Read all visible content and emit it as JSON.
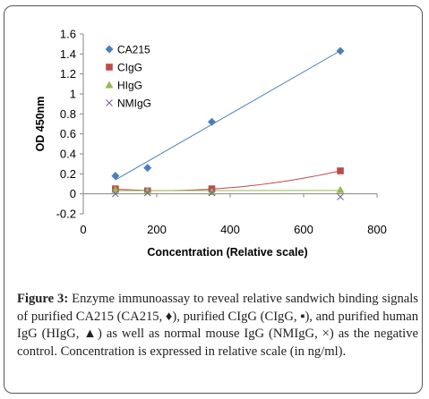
{
  "chart_data": {
    "type": "scatter",
    "title": "",
    "xlabel": "Concentration (Relative scale)",
    "ylabel": "OD 450nm",
    "xlim": [
      0,
      800
    ],
    "ylim": [
      -0.2,
      1.6
    ],
    "xticks": [
      0,
      200,
      400,
      600,
      800
    ],
    "yticks": [
      -0.2,
      0,
      0.2,
      0.4,
      0.6,
      0.8,
      1,
      1.2,
      1.4,
      1.6
    ],
    "grid": false,
    "legend_position": "top-left",
    "series": [
      {
        "name": "CA215",
        "marker": "diamond",
        "color": "#4a7ebb",
        "x": [
          87.5,
          175,
          350,
          700
        ],
        "y": [
          0.18,
          0.26,
          0.72,
          1.43
        ],
        "trendline": "linear"
      },
      {
        "name": "CIgG",
        "marker": "square",
        "color": "#be4b48",
        "x": [
          87.5,
          175,
          350,
          700
        ],
        "y": [
          0.05,
          0.03,
          0.05,
          0.23
        ],
        "trendline": "curve"
      },
      {
        "name": "HIgG",
        "marker": "triangle",
        "color": "#98b954",
        "x": [
          87.5,
          175,
          350,
          700
        ],
        "y": [
          0.04,
          0.03,
          0.02,
          0.04
        ],
        "trendline": "linear"
      },
      {
        "name": "NMIgG",
        "marker": "x",
        "color": "#7d60a0",
        "x": [
          87.5,
          175,
          350,
          700
        ],
        "y": [
          0.0,
          0.01,
          0.01,
          -0.03
        ],
        "trendline": "none"
      }
    ]
  },
  "caption": {
    "label": "Figure 3:",
    "text": " Enzyme immunoassay to reveal relative sandwich binding signals of purified CA215 (CA215, ♦), purified CIgG (CIgG, ▪), and purified human IgG (HIgG, ▲) as well as normal mouse IgG (NMIgG, ×) as the negative control. Concentration is expressed in relative scale (in ng/ml)."
  }
}
